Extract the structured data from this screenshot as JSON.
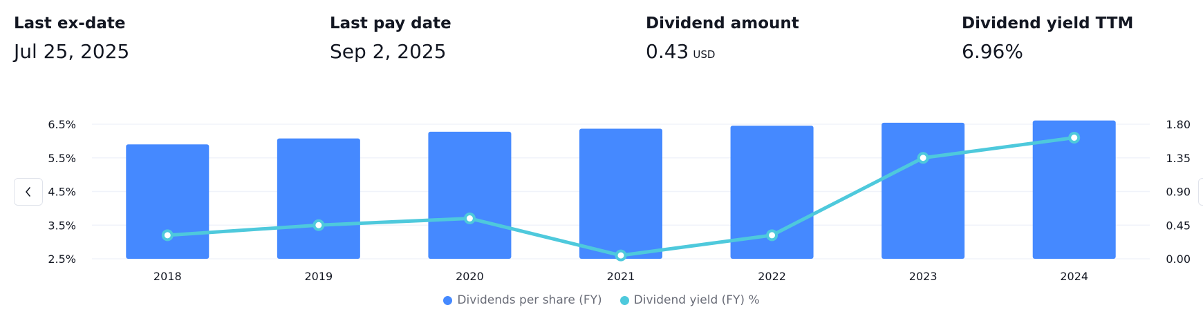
{
  "stats": [
    {
      "label": "Last ex-date",
      "value": "Jul 25, 2025",
      "unit": ""
    },
    {
      "label": "Last pay date",
      "value": "Sep 2, 2025",
      "unit": ""
    },
    {
      "label": "Dividend amount",
      "value": "0.43",
      "unit": "USD"
    },
    {
      "label": "Dividend yield TTM",
      "value": "6.96%",
      "unit": ""
    }
  ],
  "navigation": {
    "prev_icon": "chevron-left-icon"
  },
  "colors": {
    "bars": "#4589ff",
    "line": "#4ec9dc",
    "grid": "#f0f3fa"
  },
  "chart_data": {
    "type": "bar",
    "categories": [
      "2018",
      "2019",
      "2020",
      "2021",
      "2022",
      "2023",
      "2024"
    ],
    "series": [
      {
        "name": "Dividends per share (FY)",
        "type": "bar",
        "axis": "right",
        "values": [
          1.53,
          1.61,
          1.7,
          1.74,
          1.78,
          1.82,
          1.85
        ]
      },
      {
        "name": "Dividend yield (FY) %",
        "type": "line",
        "axis": "left",
        "values": [
          3.2,
          3.5,
          3.7,
          2.6,
          3.2,
          5.5,
          6.1
        ]
      }
    ],
    "y_left": {
      "ticks": [
        "6.5%",
        "5.5%",
        "4.5%",
        "3.5%",
        "2.5%"
      ],
      "min": 2.5,
      "max": 6.5
    },
    "y_right": {
      "ticks": [
        "1.80",
        "1.35",
        "0.90",
        "0.45",
        "0.00"
      ],
      "min": 0,
      "max": 1.8
    },
    "grid": true,
    "legend_position": "bottom-center"
  }
}
